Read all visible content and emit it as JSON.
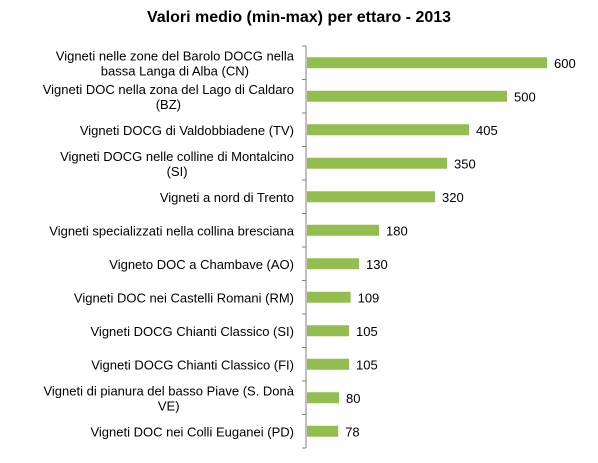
{
  "chart_data": {
    "type": "bar",
    "orientation": "horizontal",
    "title": "Valori medio (min-max) per ettaro - 2013",
    "bar_color": "#93BD4F",
    "axis_color": "#808080",
    "grid": false,
    "legend": "none",
    "xlim": [
      0,
      600
    ],
    "categories": [
      [
        "Vigneti nelle zone del Barolo DOCG nella",
        "bassa Langa di Alba (CN)"
      ],
      [
        "Vigneti DOC nella zona del Lago di Caldaro",
        "(BZ)"
      ],
      [
        "Vigneti DOCG di Valdobbiadene (TV)"
      ],
      [
        "Vigneti DOCG nelle colline di Montalcino",
        "(SI)"
      ],
      [
        "Vigneti a nord di Trento"
      ],
      [
        "Vigneti specializzati nella collina bresciana"
      ],
      [
        "Vigneto DOC a Chambave (AO)"
      ],
      [
        "Vigneti DOC nei Castelli Romani (RM)"
      ],
      [
        "Vigneti DOCG Chianti Classico (SI)"
      ],
      [
        "Vigneti DOCG Chianti Classico (FI)"
      ],
      [
        "Vigneti di pianura del basso Piave (S. Donà",
        "VE)"
      ],
      [
        "Vigneti DOC nei Colli Euganei (PD)"
      ]
    ],
    "values": [
      600,
      500,
      405,
      350,
      320,
      180,
      130,
      109,
      105,
      105,
      80,
      78
    ]
  }
}
